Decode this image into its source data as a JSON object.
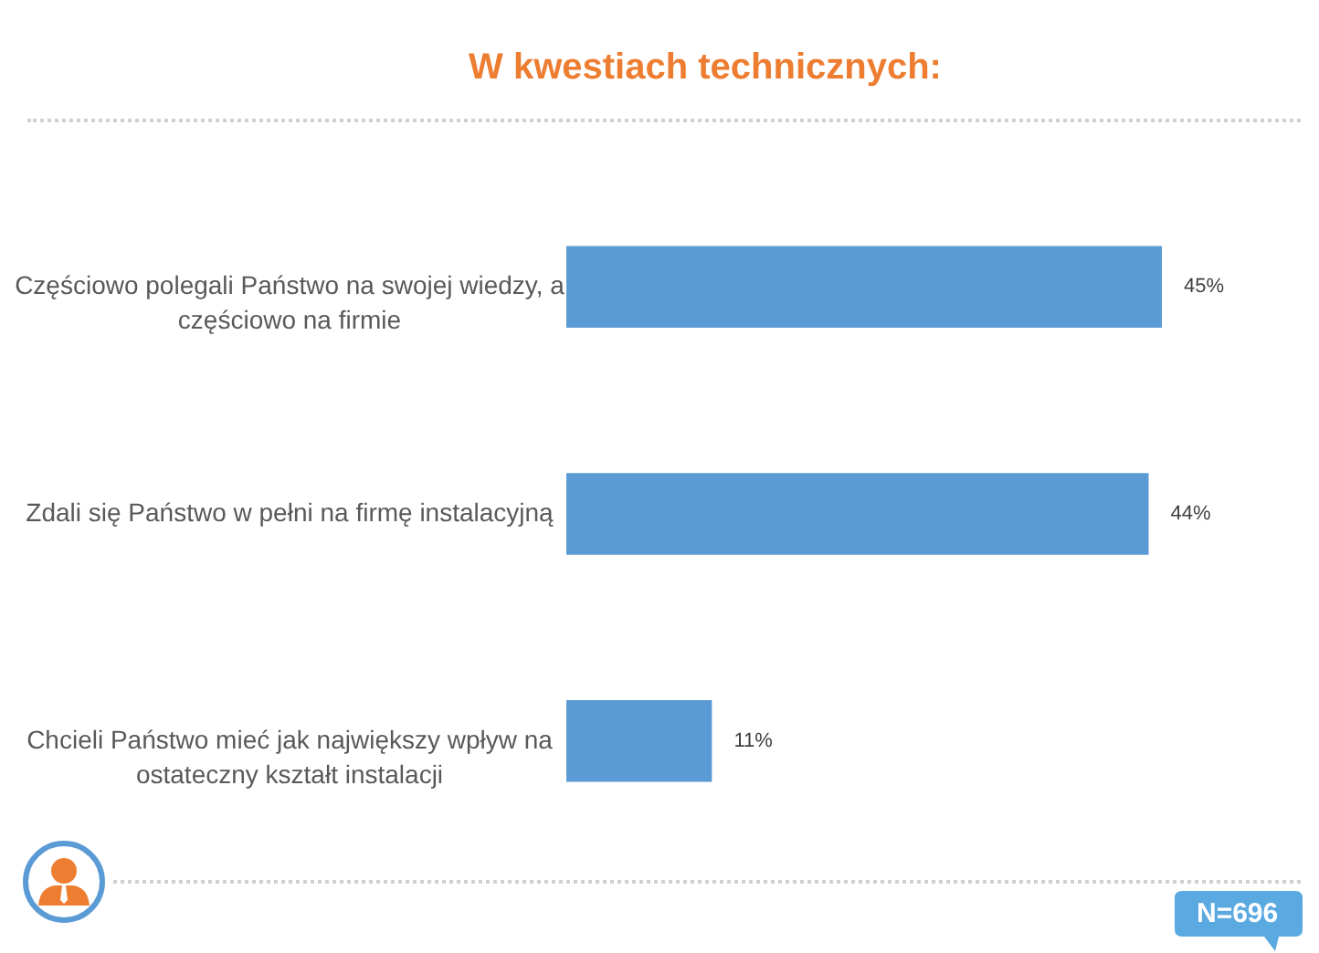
{
  "chart_data": {
    "type": "bar",
    "orientation": "horizontal",
    "title": "W kwestiach technicznych:",
    "categories": [
      "Częściowo polegali Państwo na swojej wiedzy, a częściowo na firmie",
      "Zdali się Państwo w pełni na firmę instalacyjną",
      "Chcieli Państwo mieć jak największy wpływ na ostateczny kształt instalacji"
    ],
    "values": [
      45,
      44,
      11
    ],
    "value_labels": [
      "45%",
      "44%",
      "11%"
    ],
    "color": "#5b9bd5",
    "annotations": [
      "N=696"
    ]
  }
}
